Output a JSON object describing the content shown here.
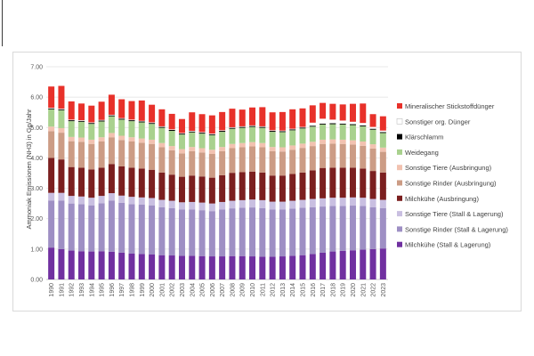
{
  "chart_data": {
    "type": "bar",
    "stacked": true,
    "title": "",
    "xlabel": "",
    "ylabel": "Ammoniak Emissionen (NH3) in Gg/Jahr",
    "ylim": [
      0,
      7
    ],
    "yticks": [
      "0.00",
      "1.00",
      "2.00",
      "3.00",
      "4.00",
      "5.00",
      "6.00",
      "7.00"
    ],
    "grid": true,
    "legend_position": "right",
    "categories": [
      "1990",
      "1991",
      "1992",
      "1993",
      "1994",
      "1995",
      "1996",
      "1997",
      "1998",
      "1999",
      "2000",
      "2001",
      "2002",
      "2003",
      "2004",
      "2005",
      "2006",
      "2007",
      "2008",
      "2009",
      "2010",
      "2011",
      "2012",
      "2013",
      "2014",
      "2015",
      "2016",
      "2017",
      "2018",
      "2019",
      "2020",
      "2021",
      "2022",
      "2023"
    ],
    "series": [
      {
        "name": "Milchkühe (Stall & Lagerung)",
        "color": "#7030a0",
        "values": [
          1.05,
          1.0,
          0.95,
          0.93,
          0.92,
          0.93,
          0.91,
          0.88,
          0.85,
          0.84,
          0.82,
          0.8,
          0.79,
          0.78,
          0.78,
          0.77,
          0.76,
          0.76,
          0.77,
          0.77,
          0.76,
          0.75,
          0.75,
          0.76,
          0.78,
          0.8,
          0.84,
          0.88,
          0.92,
          0.94,
          0.96,
          0.98,
          1.0,
          1.02
        ]
      },
      {
        "name": "Sonstige Rinder (Stall & Lagerung)",
        "color": "#9e8fc4",
        "values": [
          1.55,
          1.6,
          1.55,
          1.55,
          1.52,
          1.58,
          1.69,
          1.64,
          1.63,
          1.62,
          1.62,
          1.58,
          1.56,
          1.52,
          1.52,
          1.51,
          1.49,
          1.54,
          1.57,
          1.59,
          1.61,
          1.6,
          1.55,
          1.54,
          1.55,
          1.56,
          1.54,
          1.52,
          1.5,
          1.48,
          1.47,
          1.44,
          1.38,
          1.33
        ]
      },
      {
        "name": "Sonstige Tiere (Stall & Lagerung)",
        "color": "#c9bfe1",
        "values": [
          0.25,
          0.25,
          0.25,
          0.25,
          0.25,
          0.24,
          0.24,
          0.24,
          0.24,
          0.24,
          0.24,
          0.24,
          0.24,
          0.24,
          0.25,
          0.25,
          0.25,
          0.25,
          0.25,
          0.25,
          0.26,
          0.26,
          0.26,
          0.26,
          0.26,
          0.26,
          0.27,
          0.27,
          0.27,
          0.27,
          0.27,
          0.27,
          0.27,
          0.27
        ]
      },
      {
        "name": "Milchkühe (Ausbringung)",
        "color": "#7b1f1f",
        "values": [
          1.15,
          1.1,
          0.95,
          0.95,
          0.93,
          0.93,
          0.96,
          0.96,
          0.96,
          0.95,
          0.93,
          0.9,
          0.86,
          0.84,
          0.87,
          0.86,
          0.85,
          0.88,
          0.92,
          0.92,
          0.92,
          0.91,
          0.86,
          0.86,
          0.88,
          0.9,
          0.94,
          1.0,
          0.99,
          0.99,
          0.98,
          0.96,
          0.92,
          0.9
        ]
      },
      {
        "name": "Sonstige Rinder (Ausbringung)",
        "color": "#cc9c85",
        "values": [
          0.88,
          0.88,
          0.85,
          0.85,
          0.84,
          0.86,
          0.88,
          0.87,
          0.86,
          0.85,
          0.85,
          0.83,
          0.8,
          0.77,
          0.8,
          0.79,
          0.78,
          0.79,
          0.81,
          0.82,
          0.83,
          0.83,
          0.8,
          0.79,
          0.8,
          0.81,
          0.8,
          0.79,
          0.79,
          0.78,
          0.76,
          0.75,
          0.74,
          0.68
        ]
      },
      {
        "name": "Sonstige Tiere (Ausbringung)",
        "color": "#f2c2b0",
        "values": [
          0.15,
          0.15,
          0.14,
          0.14,
          0.14,
          0.14,
          0.14,
          0.14,
          0.14,
          0.14,
          0.14,
          0.14,
          0.14,
          0.14,
          0.14,
          0.14,
          0.14,
          0.14,
          0.14,
          0.14,
          0.14,
          0.14,
          0.14,
          0.14,
          0.14,
          0.14,
          0.14,
          0.14,
          0.14,
          0.14,
          0.14,
          0.14,
          0.14,
          0.14
        ]
      },
      {
        "name": "Weidegang",
        "color": "#a9d18e",
        "values": [
          0.57,
          0.59,
          0.52,
          0.52,
          0.52,
          0.52,
          0.55,
          0.53,
          0.53,
          0.53,
          0.52,
          0.5,
          0.5,
          0.48,
          0.48,
          0.48,
          0.48,
          0.5,
          0.5,
          0.5,
          0.5,
          0.5,
          0.5,
          0.5,
          0.5,
          0.5,
          0.5,
          0.5,
          0.5,
          0.5,
          0.5,
          0.5,
          0.48,
          0.48
        ]
      },
      {
        "name": "Klärschlamm",
        "color": "#000000",
        "values": [
          0.03,
          0.03,
          0.03,
          0.03,
          0.03,
          0.03,
          0.03,
          0.03,
          0.03,
          0.03,
          0.03,
          0.03,
          0.03,
          0.03,
          0.03,
          0.03,
          0.03,
          0.03,
          0.03,
          0.03,
          0.03,
          0.03,
          0.03,
          0.03,
          0.03,
          0.03,
          0.03,
          0.03,
          0.03,
          0.03,
          0.03,
          0.03,
          0.03,
          0.03
        ]
      },
      {
        "name": "Sonstiger org. Dünger",
        "color": "#ffffff",
        "values": [
          0.02,
          0.02,
          0.02,
          0.02,
          0.02,
          0.02,
          0.02,
          0.02,
          0.02,
          0.02,
          0.02,
          0.02,
          0.02,
          0.02,
          0.02,
          0.02,
          0.02,
          0.02,
          0.02,
          0.02,
          0.02,
          0.02,
          0.02,
          0.02,
          0.02,
          0.02,
          0.1,
          0.16,
          0.12,
          0.1,
          0.08,
          0.08,
          0.06,
          0.05
        ]
      },
      {
        "name": "Mineralischer Stickstoffdünger",
        "color": "#e8312a",
        "values": [
          0.7,
          0.75,
          0.6,
          0.55,
          0.55,
          0.6,
          0.66,
          0.62,
          0.61,
          0.67,
          0.58,
          0.56,
          0.51,
          0.46,
          0.61,
          0.59,
          0.6,
          0.6,
          0.61,
          0.55,
          0.59,
          0.63,
          0.59,
          0.61,
          0.64,
          0.61,
          0.57,
          0.52,
          0.52,
          0.53,
          0.59,
          0.64,
          0.42,
          0.47
        ]
      }
    ]
  }
}
